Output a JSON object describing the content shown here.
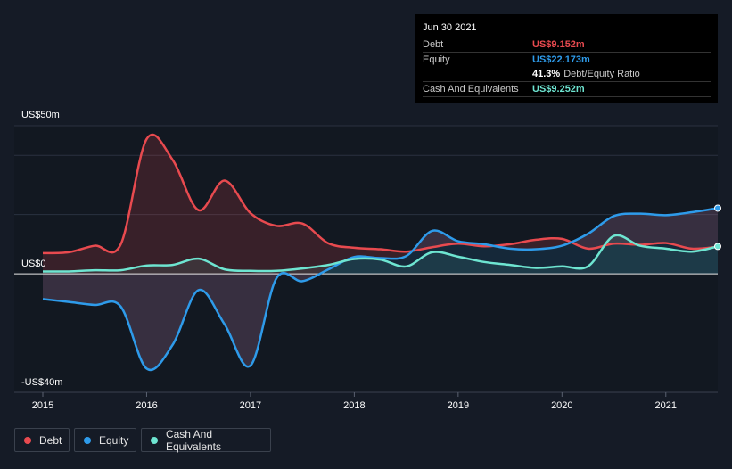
{
  "tooltip": {
    "date": "Jun 30 2021",
    "rows": [
      {
        "label": "Debt",
        "value": "US$9.152m",
        "color": "#e84a4f"
      },
      {
        "label": "Equity",
        "value": "US$22.173m",
        "color": "#2e9bea"
      },
      {
        "label": "",
        "value": "41.3%",
        "sub": "Debt/Equity Ratio",
        "color": "#ffffff"
      },
      {
        "label": "Cash And Equivalents",
        "value": "US$9.252m",
        "color": "#6ee5d1"
      }
    ]
  },
  "legend": [
    {
      "label": "Debt",
      "color": "#e84a4f"
    },
    {
      "label": "Equity",
      "color": "#2e9bea"
    },
    {
      "label": "Cash And Equivalents",
      "color": "#6ee5d1"
    }
  ],
  "chart_data": {
    "type": "line",
    "title": "",
    "xlabel": "",
    "ylabel": "",
    "xlim": [
      2015.0,
      2021.5
    ],
    "ylim": [
      -40,
      50
    ],
    "y_tick_labels": [
      {
        "value": 50,
        "label": "US$50m"
      },
      {
        "value": 0,
        "label": "US$0"
      },
      {
        "value": -40,
        "label": "-US$40m"
      }
    ],
    "x_tick_labels": [
      {
        "value": 2015,
        "label": "2015"
      },
      {
        "value": 2016,
        "label": "2016"
      },
      {
        "value": 2017,
        "label": "2017"
      },
      {
        "value": 2018,
        "label": "2018"
      },
      {
        "value": 2019,
        "label": "2019"
      },
      {
        "value": 2020,
        "label": "2020"
      },
      {
        "value": 2021,
        "label": "2021"
      }
    ],
    "series": [
      {
        "name": "Debt",
        "color": "#e84a4f",
        "points": [
          [
            2015.0,
            7.0
          ],
          [
            2015.25,
            7.3
          ],
          [
            2015.5,
            9.5
          ],
          [
            2015.75,
            9.9
          ],
          [
            2016.0,
            45.5
          ],
          [
            2016.25,
            38.5
          ],
          [
            2016.5,
            21.5
          ],
          [
            2016.75,
            31.5
          ],
          [
            2017.0,
            20.5
          ],
          [
            2017.25,
            16.2
          ],
          [
            2017.5,
            17.0
          ],
          [
            2017.75,
            10.3
          ],
          [
            2018.0,
            8.8
          ],
          [
            2018.25,
            8.3
          ],
          [
            2018.5,
            7.5
          ],
          [
            2018.75,
            9.0
          ],
          [
            2019.0,
            10.2
          ],
          [
            2019.25,
            9.3
          ],
          [
            2019.5,
            10.0
          ],
          [
            2019.75,
            11.5
          ],
          [
            2020.0,
            11.8
          ],
          [
            2020.25,
            8.5
          ],
          [
            2020.5,
            10.2
          ],
          [
            2020.75,
            9.8
          ],
          [
            2021.0,
            10.4
          ],
          [
            2021.25,
            8.5
          ],
          [
            2021.5,
            9.15
          ]
        ]
      },
      {
        "name": "Equity",
        "color": "#2e9bea",
        "points": [
          [
            2015.0,
            -8.5
          ],
          [
            2015.25,
            -9.5
          ],
          [
            2015.5,
            -10.5
          ],
          [
            2015.75,
            -11.0
          ],
          [
            2016.0,
            -32.0
          ],
          [
            2016.25,
            -24.0
          ],
          [
            2016.5,
            -5.5
          ],
          [
            2016.75,
            -17.0
          ],
          [
            2017.0,
            -31.0
          ],
          [
            2017.25,
            -1.5
          ],
          [
            2017.5,
            -2.5
          ],
          [
            2017.75,
            1.5
          ],
          [
            2018.0,
            5.7
          ],
          [
            2018.25,
            5.3
          ],
          [
            2018.5,
            6.0
          ],
          [
            2018.75,
            14.5
          ],
          [
            2019.0,
            11.0
          ],
          [
            2019.25,
            10.0
          ],
          [
            2019.5,
            8.5
          ],
          [
            2019.75,
            8.3
          ],
          [
            2020.0,
            9.5
          ],
          [
            2020.25,
            13.5
          ],
          [
            2020.5,
            19.5
          ],
          [
            2020.75,
            20.3
          ],
          [
            2021.0,
            19.8
          ],
          [
            2021.25,
            20.8
          ],
          [
            2021.5,
            22.17
          ]
        ]
      },
      {
        "name": "Cash And Equivalents",
        "color": "#6ee5d1",
        "points": [
          [
            2015.0,
            0.8
          ],
          [
            2015.25,
            0.8
          ],
          [
            2015.5,
            1.2
          ],
          [
            2015.75,
            1.2
          ],
          [
            2016.0,
            2.8
          ],
          [
            2016.25,
            3.0
          ],
          [
            2016.5,
            5.1
          ],
          [
            2016.75,
            1.5
          ],
          [
            2017.0,
            1.0
          ],
          [
            2017.25,
            1.0
          ],
          [
            2017.5,
            1.8
          ],
          [
            2017.75,
            3.0
          ],
          [
            2018.0,
            5.0
          ],
          [
            2018.25,
            4.8
          ],
          [
            2018.5,
            2.5
          ],
          [
            2018.75,
            7.3
          ],
          [
            2019.0,
            5.8
          ],
          [
            2019.25,
            4.0
          ],
          [
            2019.5,
            3.0
          ],
          [
            2019.75,
            2.0
          ],
          [
            2020.0,
            2.5
          ],
          [
            2020.25,
            2.5
          ],
          [
            2020.5,
            12.8
          ],
          [
            2020.75,
            9.5
          ],
          [
            2021.0,
            8.5
          ],
          [
            2021.25,
            7.5
          ],
          [
            2021.5,
            9.25
          ]
        ]
      }
    ]
  }
}
